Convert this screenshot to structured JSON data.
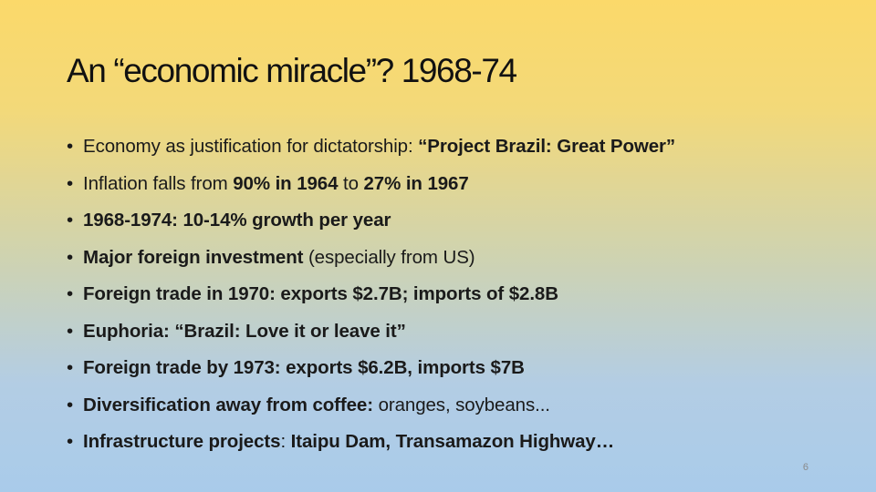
{
  "slide": {
    "title": "An “economic miracle”? 1968-74",
    "page_number": "6",
    "bullet_glyph": "•",
    "bullets": [
      {
        "segments": [
          {
            "text": "Economy as justification for dictatorship: ",
            "bold": false
          },
          {
            "text": "“Project Brazil: Great Power”",
            "bold": true
          }
        ]
      },
      {
        "segments": [
          {
            "text": "Inflation falls from ",
            "bold": false
          },
          {
            "text": "90% in 1964",
            "bold": true
          },
          {
            "text": " to ",
            "bold": false
          },
          {
            "text": "27% in 1967",
            "bold": true
          }
        ]
      },
      {
        "segments": [
          {
            "text": "1968-1974: 10-14% growth per year",
            "bold": true
          }
        ]
      },
      {
        "segments": [
          {
            "text": "Major foreign investment",
            "bold": true
          },
          {
            "text": " (especially from US)",
            "bold": false
          }
        ]
      },
      {
        "segments": [
          {
            "text": "Foreign trade in 1970: exports $2.7B; imports of $2.8B",
            "bold": true
          }
        ]
      },
      {
        "segments": [
          {
            "text": "Euphoria: “Brazil: Love it or leave it”",
            "bold": true
          }
        ]
      },
      {
        "segments": [
          {
            "text": "Foreign trade by 1973: exports $6.2B, imports $7B",
            "bold": true
          }
        ]
      },
      {
        "segments": [
          {
            "text": "Diversification away from coffee:",
            "bold": true
          },
          {
            "text": " oranges, soybeans...",
            "bold": false
          }
        ]
      },
      {
        "segments": [
          {
            "text": "Infrastructure projects",
            "bold": true
          },
          {
            "text": ": ",
            "bold": false
          },
          {
            "text": "Itaipu Dam, Transamazon Highway…",
            "bold": true
          }
        ]
      }
    ]
  }
}
